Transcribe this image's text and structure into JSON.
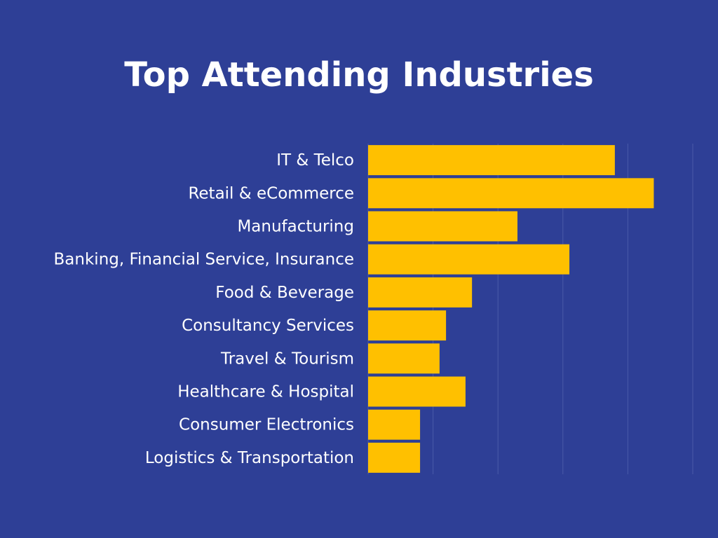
{
  "chart_data": {
    "type": "hbar",
    "title": "Top Attending Industries",
    "categories": [
      "IT & Telco",
      "Retail & eCommerce",
      "Manufacturing",
      "Banking, Financial Service, Insurance",
      "Food & Beverage",
      "Consultancy Services",
      "Travel & Tourism",
      "Healthcare & Hospital",
      "Consumer Electronics",
      "Logistics & Transportation"
    ],
    "values": [
      76,
      88,
      46,
      62,
      32,
      24,
      22,
      30,
      16,
      16
    ],
    "color": "#ffc000",
    "xlim": [
      0,
      100
    ],
    "xticks": [
      0,
      20,
      40,
      60,
      80,
      100
    ],
    "grid": true
  }
}
